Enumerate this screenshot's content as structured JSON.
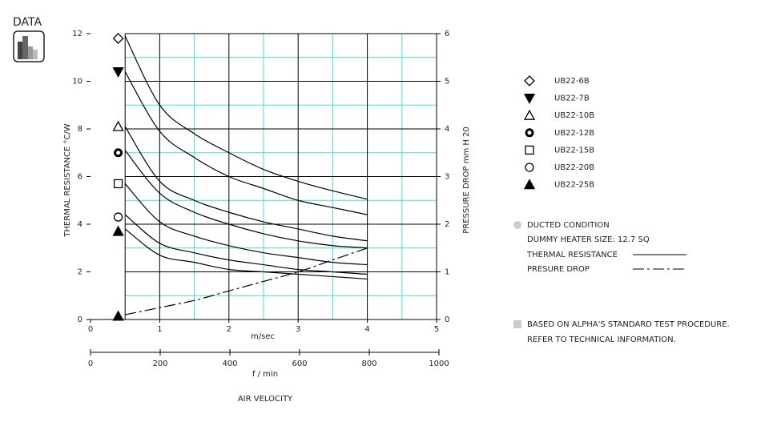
{
  "header": "DATA",
  "chart_data": {
    "type": "line",
    "y_label": "THERMAL RESISTANCE   °C/W",
    "y2_label": "PRESSURE DROP    mm H 20",
    "x_label": "m/sec",
    "x2_label": "f / min",
    "axis_title": "AIR VELOCITY",
    "xlim": [
      0,
      5
    ],
    "xticks": [
      0,
      1,
      2,
      3,
      4,
      5
    ],
    "x2lim": [
      0,
      1000
    ],
    "x2ticks": [
      0,
      200,
      400,
      600,
      800,
      1000
    ],
    "ylim": [
      0,
      12
    ],
    "yticks": [
      0,
      2,
      4,
      6,
      8,
      10,
      12
    ],
    "y2lim": [
      0,
      6
    ],
    "y2ticks": [
      0,
      1,
      2,
      3,
      4,
      5,
      6
    ],
    "xgrid_major": [
      0.5,
      1,
      2,
      3,
      4
    ],
    "xgrid_minor": [
      1.5,
      2.5,
      3.5,
      4.5
    ],
    "ygrid_major": [
      2,
      4,
      6,
      8,
      10,
      12
    ],
    "ygrid_minor": [
      1,
      3,
      5,
      7,
      9,
      11
    ],
    "major_grid_color": "#000000",
    "minor_grid_color": "#44dddd",
    "marker_x": 0.4,
    "x": [
      0.5,
      1,
      1.5,
      2,
      2.5,
      3,
      3.5,
      4
    ],
    "series": [
      {
        "name": "UB22-6B",
        "marker": "diamond-open",
        "marker_y": 11.8,
        "values": [
          11.9,
          9.0,
          7.8,
          7.0,
          6.3,
          5.8,
          5.4,
          5.05
        ]
      },
      {
        "name": "UB22-7B",
        "marker": "triangle-down-filled",
        "marker_y": 10.4,
        "values": [
          10.4,
          7.9,
          6.8,
          6.0,
          5.5,
          5.0,
          4.7,
          4.4
        ]
      },
      {
        "name": "UB22-10B",
        "marker": "triangle-open",
        "marker_y": 8.1,
        "values": [
          8.1,
          5.8,
          5.0,
          4.5,
          4.1,
          3.8,
          3.5,
          3.3
        ]
      },
      {
        "name": "UB22-12B",
        "marker": "circle-bold",
        "marker_y": 7.0,
        "values": [
          7.1,
          5.3,
          4.5,
          4.0,
          3.6,
          3.3,
          3.1,
          3.0
        ]
      },
      {
        "name": "UB22-15B",
        "marker": "square-open",
        "marker_y": 5.7,
        "values": [
          5.7,
          4.1,
          3.5,
          3.1,
          2.8,
          2.6,
          2.4,
          2.3
        ]
      },
      {
        "name": "UB22-20B",
        "marker": "circle-open",
        "marker_y": 4.3,
        "values": [
          4.4,
          3.2,
          2.8,
          2.5,
          2.3,
          2.1,
          2.0,
          1.9
        ]
      },
      {
        "name": "UB22-25B",
        "marker": "triangle-filled",
        "marker_y": 3.7,
        "values": [
          3.8,
          2.7,
          2.4,
          2.1,
          2.0,
          1.9,
          1.8,
          1.7
        ]
      },
      {
        "axis": "y2",
        "style": "dash-dot",
        "marker": "triangle-filled",
        "marker_y": 0.07,
        "values": [
          0.1,
          0.25,
          0.4,
          0.6,
          0.8,
          1.0,
          1.25,
          1.5
        ]
      }
    ],
    "condition": "DUCTED CONDITION",
    "heater": "DUMMY HEATER SIZE: 12.7 SQ",
    "line_key": [
      "THERMAL RESISTANCE",
      "PRESURE DROP"
    ],
    "notes": [
      "BASED ON ALPHA'S STANDARD TEST PROCEDURE.",
      "REFER TO TECHNICAL INFORMATION."
    ]
  }
}
